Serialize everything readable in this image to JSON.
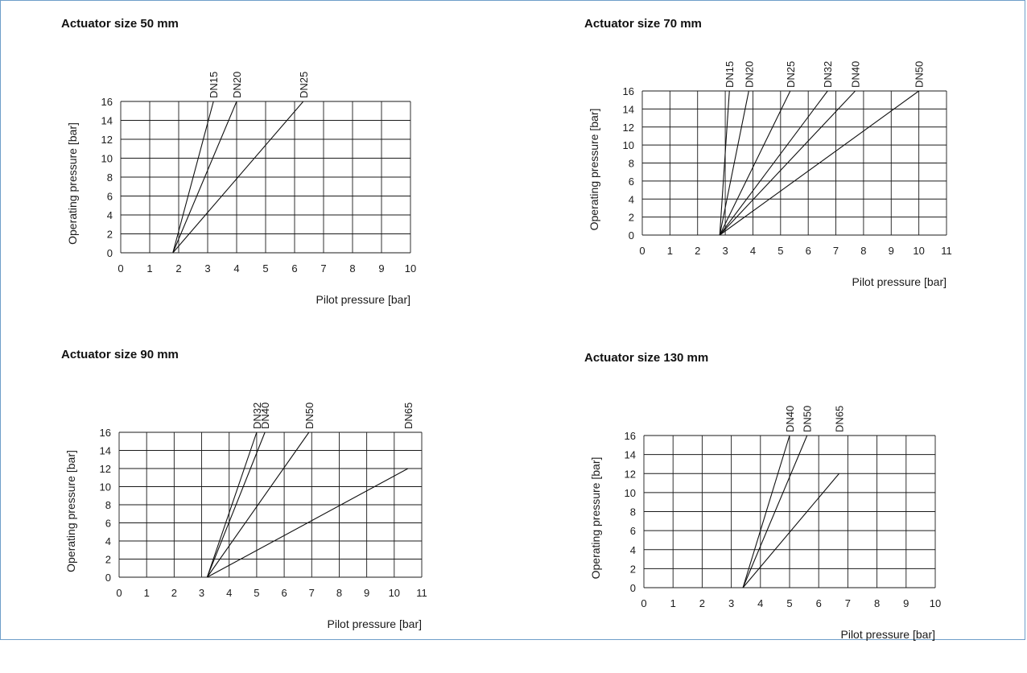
{
  "chart_data": [
    {
      "type": "line",
      "title": "Actuator size 50 mm",
      "xlabel": "Pilot pressure [bar]",
      "ylabel": "Operating pressure [bar]",
      "xlim": [
        0,
        10
      ],
      "ylim": [
        0,
        16
      ],
      "x_ticks": [
        0,
        1,
        2,
        3,
        4,
        5,
        6,
        7,
        8,
        9,
        10
      ],
      "y_ticks": [
        0,
        2,
        4,
        6,
        8,
        10,
        12,
        14,
        16
      ],
      "grid": true,
      "series": [
        {
          "name": "DN15",
          "x": [
            1.8,
            3.2
          ],
          "y": [
            0,
            16
          ]
        },
        {
          "name": "DN20",
          "x": [
            1.8,
            4.0
          ],
          "y": [
            0,
            16
          ]
        },
        {
          "name": "DN25",
          "x": [
            1.8,
            6.3
          ],
          "y": [
            0,
            16
          ]
        }
      ]
    },
    {
      "type": "line",
      "title": "Actuator size 70 mm",
      "xlabel": "Pilot pressure [bar]",
      "ylabel": "Operating pressure [bar]",
      "xlim": [
        0,
        11
      ],
      "ylim": [
        0,
        16
      ],
      "x_ticks": [
        0,
        1,
        2,
        3,
        4,
        5,
        6,
        7,
        8,
        9,
        10,
        11
      ],
      "y_ticks": [
        0,
        2,
        4,
        6,
        8,
        10,
        12,
        14,
        16
      ],
      "grid": true,
      "series": [
        {
          "name": "DN15",
          "x": [
            2.8,
            3.15
          ],
          "y": [
            0,
            16
          ]
        },
        {
          "name": "DN20",
          "x": [
            2.8,
            3.85
          ],
          "y": [
            0,
            16
          ]
        },
        {
          "name": "DN25",
          "x": [
            2.8,
            5.35
          ],
          "y": [
            0,
            16
          ]
        },
        {
          "name": "DN32",
          "x": [
            2.8,
            6.7
          ],
          "y": [
            0,
            16
          ]
        },
        {
          "name": "DN40",
          "x": [
            2.8,
            7.7
          ],
          "y": [
            0,
            16
          ]
        },
        {
          "name": "DN50",
          "x": [
            2.8,
            10.0
          ],
          "y": [
            0,
            16
          ]
        }
      ]
    },
    {
      "type": "line",
      "title": "Actuator size 90 mm",
      "xlabel": "Pilot pressure [bar]",
      "ylabel": "Operating pressure [bar]",
      "xlim": [
        0,
        11
      ],
      "ylim": [
        0,
        16
      ],
      "x_ticks": [
        0,
        1,
        2,
        3,
        4,
        5,
        6,
        7,
        8,
        9,
        10,
        11
      ],
      "y_ticks": [
        0,
        2,
        4,
        6,
        8,
        10,
        12,
        14,
        16
      ],
      "grid": true,
      "series": [
        {
          "name": "DN32",
          "x": [
            3.2,
            5.0
          ],
          "y": [
            0,
            16
          ]
        },
        {
          "name": "DN40",
          "x": [
            3.2,
            5.3
          ],
          "y": [
            0,
            16
          ]
        },
        {
          "name": "DN50",
          "x": [
            3.2,
            6.9
          ],
          "y": [
            0,
            16
          ]
        },
        {
          "name": "DN65",
          "x": [
            3.2,
            10.5
          ],
          "y": [
            0,
            12
          ]
        }
      ]
    },
    {
      "type": "line",
      "title": "Actuator size 130 mm",
      "xlabel": "Pilot pressure [bar]",
      "ylabel": "Operating pressure [bar]",
      "xlim": [
        0,
        10
      ],
      "ylim": [
        0,
        16
      ],
      "x_ticks": [
        0,
        1,
        2,
        3,
        4,
        5,
        6,
        7,
        8,
        9,
        10
      ],
      "y_ticks": [
        0,
        2,
        4,
        6,
        8,
        10,
        12,
        14,
        16
      ],
      "grid": true,
      "series": [
        {
          "name": "DN40",
          "x": [
            3.4,
            5.0
          ],
          "y": [
            0,
            16
          ]
        },
        {
          "name": "DN50",
          "x": [
            3.4,
            5.6
          ],
          "y": [
            0,
            16
          ]
        },
        {
          "name": "DN65",
          "x": [
            3.4,
            6.7
          ],
          "y": [
            0,
            12
          ]
        }
      ]
    }
  ]
}
